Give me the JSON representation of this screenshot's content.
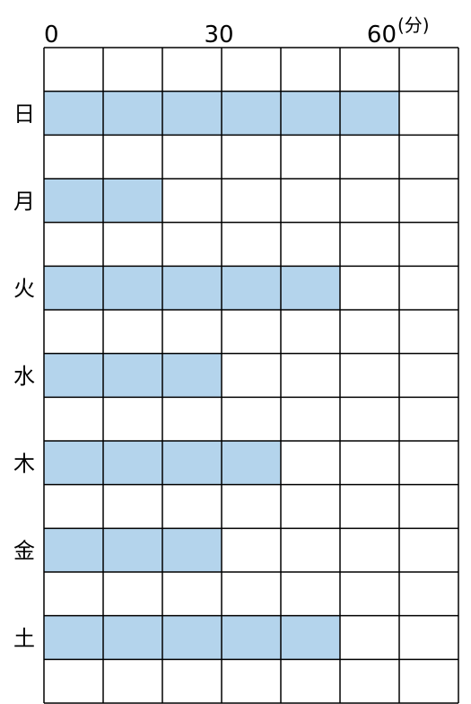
{
  "chart_data": {
    "type": "bar",
    "orientation": "horizontal",
    "categories": [
      "日",
      "月",
      "火",
      "水",
      "木",
      "金",
      "土"
    ],
    "values": [
      60,
      20,
      50,
      30,
      40,
      30,
      50
    ],
    "x_ticks": [
      "0",
      "30",
      "60"
    ],
    "x_unit": "(分)",
    "xlim": [
      0,
      70
    ],
    "grid_step": 10,
    "grid": true,
    "bar_color": "#b4d4ec"
  }
}
